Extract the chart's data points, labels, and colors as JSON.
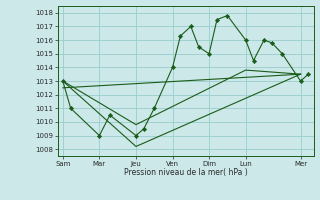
{
  "background_color": "#cce8e8",
  "grid_color": "#99cccc",
  "line_color": "#1a5c1a",
  "marker_color": "#1a5c1a",
  "xlabel": "Pression niveau de la mer( hPa )",
  "ylim": [
    1007.5,
    1018.5
  ],
  "yticks": [
    1008,
    1009,
    1010,
    1011,
    1012,
    1013,
    1014,
    1015,
    1016,
    1017,
    1018
  ],
  "xtick_labels": [
    "Sam",
    "Mar",
    "Jeu",
    "Ven",
    "Dim",
    "Lun",
    "Mer"
  ],
  "xtick_positions": [
    0,
    14,
    28,
    42,
    56,
    70,
    91
  ],
  "xlim": [
    -2,
    96
  ],
  "series1_x": [
    0,
    3,
    14,
    18,
    28,
    31,
    35,
    42,
    45,
    49,
    52,
    56,
    59,
    63,
    70,
    73,
    77,
    80,
    84,
    91,
    94
  ],
  "series1_y": [
    1013,
    1011,
    1009,
    1010.5,
    1009,
    1009.5,
    1011,
    1014,
    1016.3,
    1017,
    1015.5,
    1015,
    1017.5,
    1017.8,
    1016,
    1014.5,
    1016,
    1015.8,
    1015,
    1013,
    1013.5
  ],
  "series2_x": [
    0,
    28,
    91
  ],
  "series2_y": [
    1013,
    1008.2,
    1013.5
  ],
  "series3_x": [
    0,
    28,
    70,
    91
  ],
  "series3_y": [
    1013,
    1009.8,
    1013.8,
    1013.5
  ],
  "series4_x": [
    0,
    91
  ],
  "series4_y": [
    1012.5,
    1013.5
  ]
}
